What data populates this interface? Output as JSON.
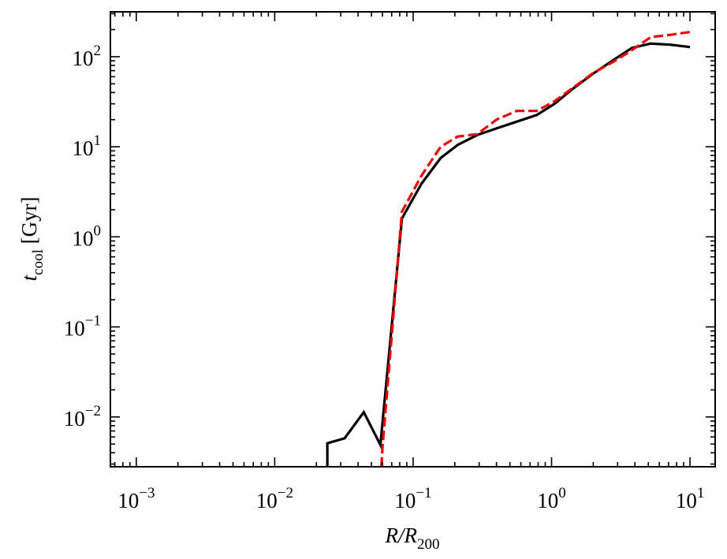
{
  "chart_data": {
    "type": "line",
    "title": "",
    "xlabel": {
      "var": "R/R",
      "sub": "200"
    },
    "ylabel": {
      "var": "t",
      "sub": "cool",
      "unit": " [Gyr]"
    },
    "xscale": "log",
    "yscale": "log",
    "xlim": [
      0.00065,
      15.2
    ],
    "ylim": [
      0.0028,
      315
    ],
    "grid": false,
    "legend": "none",
    "x_ticks": [
      {
        "base": "10",
        "exp": "−3",
        "value": 0.001
      },
      {
        "base": "10",
        "exp": "−2",
        "value": 0.01
      },
      {
        "base": "10",
        "exp": "−1",
        "value": 0.1
      },
      {
        "base": "10",
        "exp": "0",
        "value": 1
      },
      {
        "base": "10",
        "exp": "1",
        "value": 10
      }
    ],
    "y_ticks": [
      {
        "base": "10",
        "exp": "−2",
        "value": 0.01
      },
      {
        "base": "10",
        "exp": "−1",
        "value": 0.1
      },
      {
        "base": "10",
        "exp": "0",
        "value": 1
      },
      {
        "base": "10",
        "exp": "1",
        "value": 10
      },
      {
        "base": "10",
        "exp": "2",
        "value": 100
      }
    ],
    "series": [
      {
        "color": "#000000",
        "dash": "solid",
        "x": [
          0.024,
          0.024,
          0.032,
          0.044,
          0.058,
          0.083,
          0.115,
          0.158,
          0.21,
          0.29,
          0.4,
          0.56,
          0.78,
          1.05,
          1.45,
          2.0,
          2.8,
          3.8,
          5.2,
          7.2,
          10.0
        ],
        "y": [
          0.0028,
          0.0051,
          0.0058,
          0.0113,
          0.0049,
          1.6,
          3.9,
          7.5,
          10.5,
          13.5,
          16.0,
          19.0,
          22.5,
          30.0,
          45.0,
          65.0,
          92.0,
          125.0,
          140.0,
          136.0,
          128.0
        ]
      },
      {
        "color": "#ee0000",
        "dash": "dashed",
        "x": [
          0.059,
          0.06,
          0.083,
          0.115,
          0.158,
          0.21,
          0.29,
          0.4,
          0.56,
          0.78,
          1.05,
          1.45,
          2.0,
          2.8,
          3.8,
          5.2,
          7.2,
          10.0
        ],
        "y": [
          0.0028,
          0.0045,
          1.9,
          4.8,
          10.0,
          13.0,
          13.8,
          20.0,
          25.0,
          25.0,
          32.0,
          46.0,
          66.0,
          88.0,
          118.0,
          165.0,
          175.0,
          188.0
        ]
      }
    ]
  }
}
